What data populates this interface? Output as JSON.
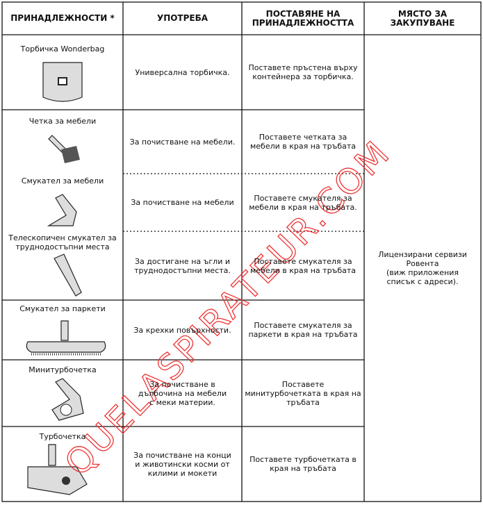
{
  "header": [
    "ПРИНАДЛЕЖНОСТИ *",
    "УПОТРЕБА",
    "ПОСТАВЯНЕ НА\nПРИНАДЛЕЖНОСТТА",
    "МЯСТО ЗА\nЗАКУПУВАНЕ"
  ],
  "rows": [
    {
      "accessory": "Торбичка  Wonderbag",
      "use": "Универсална торбичка.",
      "placement": "Поставете пръстена върху\nконтейнера за торбичка."
    },
    {
      "accessory": "Четка за мебели",
      "use": "За почистване на мебели.",
      "placement": "Поставете четката за\nмебели в края на тръбата"
    },
    {
      "accessory": "Смукател за мебели",
      "use": "За почистване на мебели",
      "placement": "Поставете смукателя за\nмебели в края на тръбата."
    },
    {
      "accessory": "Телескопичен смукател за\nтруднодостъпни места",
      "use": "За достигане на ъгли и\nтруднодостъпни места.",
      "placement": "Поставете смукателя за\nмебели в края на тръбата"
    },
    {
      "accessory": "Смукател за паркети",
      "use": "За крехки повърхности.",
      "placement": "Поставете смукателя за\nпаркети в края на тръбата"
    },
    {
      "accessory": "Минитурбочетка",
      "use": "За почистване в\nдълбочина на мебели\nс меки материи.",
      "placement": "Поставете\nминитурбочетката в края на\nтръбата"
    },
    {
      "accessory": "Турбочетка",
      "use": "За почистване на конци\nи животински косми от\nкилими и  мокети",
      "placement": "Поставете турбочетката в\nкрая на тръбата"
    }
  ],
  "purchase": "Лицензирани сервизи\nРовента\n(виж приложения\nсписък с адреси).",
  "watermark": "QUELASPIRATEUR.COM"
}
